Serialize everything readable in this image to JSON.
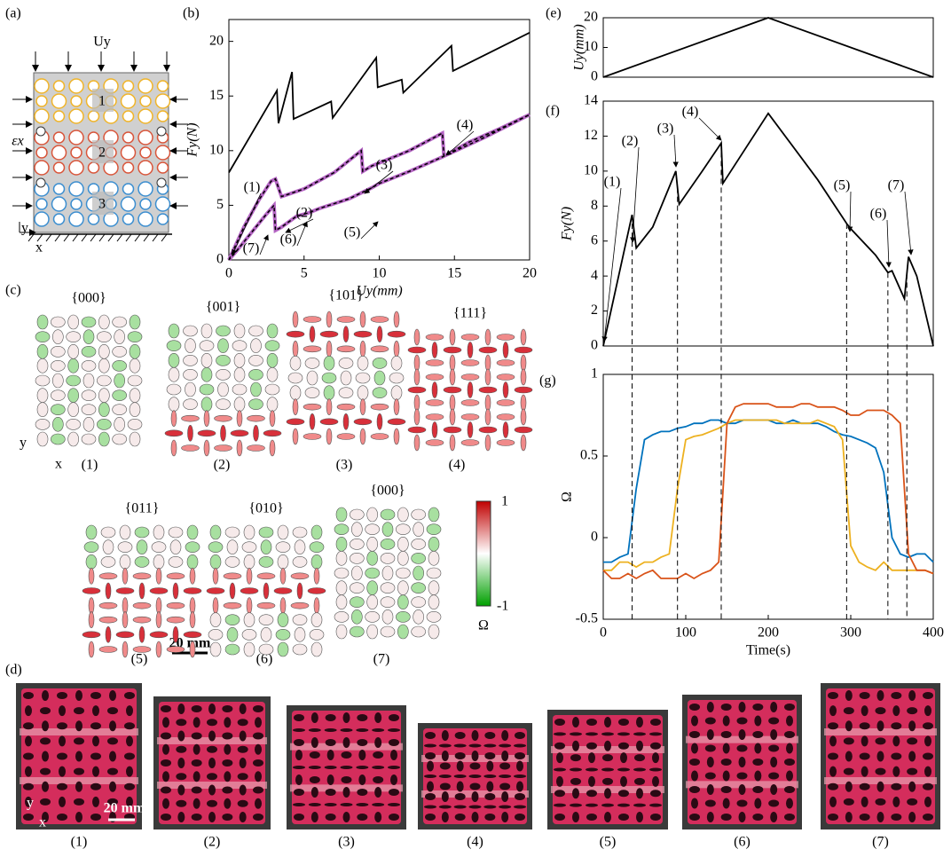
{
  "panel_labels": {
    "a": "(a)",
    "b": "(b)",
    "c": "(c)",
    "d": "(d)",
    "e": "(e)",
    "f": "(f)",
    "g": "(g)"
  },
  "schematic": {
    "load": "Uy",
    "strain": "εx",
    "cells": [
      "1",
      "2",
      "3"
    ],
    "axis_y": "y",
    "axis_x": "x"
  },
  "states": [
    {
      "code": "{000}",
      "label": "(1)"
    },
    {
      "code": "{001}",
      "label": "(2)"
    },
    {
      "code": "{101}",
      "label": "(3)"
    },
    {
      "code": "{111}",
      "label": "(4)"
    },
    {
      "code": "{011}",
      "label": "(5)"
    },
    {
      "code": "{010}",
      "label": "(6)"
    },
    {
      "code": "{000}",
      "label": "(7)"
    }
  ],
  "state_axes": {
    "y": "y",
    "x": "x"
  },
  "colorbar": {
    "max": "1",
    "min": "-1",
    "symbol": "Ω"
  },
  "scale_bar": "20 mm",
  "photos": {
    "labels": [
      "(1)",
      "(2)",
      "(3)",
      "(4)",
      "(5)",
      "(6)",
      "(7)"
    ],
    "scale_bar": "20 mm",
    "axis_y": "y",
    "axis_x": "x"
  },
  "chart_data": [
    {
      "type": "line",
      "xlabel": "Uy(mm)",
      "ylabel": "Fy(N)",
      "xlim": [
        0,
        20
      ],
      "ylim": [
        0,
        22
      ],
      "xticks": [
        0,
        5,
        10,
        15,
        20
      ],
      "yticks": [
        0,
        5,
        10,
        15,
        20
      ],
      "series": [
        {
          "color": "#000000",
          "x": [
            0,
            3.2,
            3.3,
            4.2,
            4.3,
            6.8,
            6.9,
            9.8,
            9.9,
            11.5,
            11.6,
            14.8,
            14.9,
            20
          ],
          "values": [
            8,
            15.5,
            12.5,
            17.2,
            12.9,
            14.5,
            13,
            18.5,
            15.8,
            16.5,
            15.3,
            19.6,
            17.3,
            20.8
          ]
        },
        {
          "color": "#b565c4",
          "x": [
            0,
            1,
            2,
            2.8,
            3.1,
            3.5,
            5,
            7,
            8.8,
            8.9,
            9.5,
            12,
            14.2,
            14.3,
            16,
            18,
            20,
            17,
            14,
            12,
            10,
            9.5,
            8,
            6,
            5.3,
            4.5,
            3.5,
            3.1,
            3,
            2.5,
            1.5,
            0.5,
            0
          ],
          "values": [
            0,
            3,
            5.5,
            7.2,
            7.4,
            5.8,
            6.5,
            8,
            10,
            8.1,
            8.6,
            10,
            11.6,
            9.5,
            10.8,
            12,
            13.3,
            11.2,
            9.3,
            8.1,
            7,
            6.6,
            5.6,
            4.7,
            4.3,
            4,
            3,
            2.7,
            5,
            4.2,
            2.5,
            0.8,
            0
          ]
        },
        {
          "color": "#000000",
          "dashed": true,
          "x": [
            0,
            1,
            2,
            2.8,
            3.1,
            3.5,
            5,
            7,
            8.8,
            8.9,
            9.5,
            12,
            14.2,
            14.3,
            16,
            18,
            20,
            17,
            14,
            12,
            10,
            9.5,
            8,
            6,
            5.3,
            4.5,
            3.5,
            3.1,
            3,
            2.5,
            1.5,
            0.5,
            0
          ],
          "values": [
            0,
            3,
            5.5,
            7.2,
            7.4,
            5.8,
            6.5,
            8,
            10,
            8.1,
            8.6,
            10,
            11.6,
            9.5,
            10.8,
            12,
            13.3,
            11.2,
            9.3,
            8.1,
            7,
            6.6,
            5.6,
            4.7,
            4.3,
            4,
            3,
            2.7,
            5,
            4.2,
            2.5,
            0.8,
            0
          ]
        }
      ],
      "annotations": [
        "(1)",
        "(2)",
        "(3)",
        "(4)",
        "(5)",
        "(6)",
        "(7)"
      ]
    },
    {
      "type": "line",
      "ylabel": "Uy(mm)",
      "xlim": [
        0,
        400
      ],
      "ylim": [
        0,
        20
      ],
      "yticks": [
        0,
        10,
        20
      ],
      "x": [
        0,
        200,
        400
      ],
      "series": [
        {
          "color": "#000000",
          "values": [
            0,
            20,
            0
          ]
        }
      ]
    },
    {
      "type": "line",
      "ylabel": "Fy(N)",
      "xlim": [
        0,
        400
      ],
      "ylim": [
        0,
        14
      ],
      "yticks": [
        0,
        2,
        4,
        6,
        8,
        10,
        12,
        14
      ],
      "x": [
        0,
        35,
        40,
        60,
        88,
        92,
        120,
        143,
        145,
        200,
        260,
        295,
        300,
        330,
        345,
        350,
        365,
        370,
        380,
        400
      ],
      "series": [
        {
          "color": "#000000",
          "values": [
            0,
            7.5,
            5.6,
            6.8,
            10,
            8.1,
            10,
            11.6,
            9.3,
            13.3,
            9.5,
            7,
            6.7,
            5.2,
            4.2,
            4.3,
            2.7,
            5.1,
            4,
            0
          ]
        }
      ],
      "annotations": [
        "(1)",
        "(2)",
        "(3)",
        "(4)",
        "(5)",
        "(6)",
        "(7)"
      ]
    },
    {
      "type": "line",
      "xlabel": "Time(s)",
      "ylabel": "Ω",
      "xlim": [
        0,
        400
      ],
      "ylim": [
        -0.5,
        1
      ],
      "xticks": [
        0,
        100,
        200,
        300,
        400
      ],
      "yticks": [
        -0.5,
        0,
        0.5,
        1
      ],
      "x": [
        0,
        10,
        20,
        30,
        40,
        50,
        60,
        70,
        80,
        90,
        100,
        110,
        120,
        130,
        140,
        150,
        160,
        170,
        180,
        190,
        200,
        210,
        220,
        230,
        240,
        250,
        260,
        270,
        280,
        290,
        300,
        310,
        320,
        330,
        340,
        350,
        360,
        370,
        380,
        390,
        400
      ],
      "series": [
        {
          "color": "#0072bd",
          "values": [
            -0.15,
            -0.15,
            -0.12,
            -0.1,
            0.3,
            0.6,
            0.63,
            0.65,
            0.65,
            0.67,
            0.68,
            0.7,
            0.7,
            0.72,
            0.72,
            0.7,
            0.7,
            0.72,
            0.72,
            0.72,
            0.72,
            0.7,
            0.7,
            0.72,
            0.7,
            0.7,
            0.7,
            0.68,
            0.65,
            0.63,
            0.62,
            0.6,
            0.58,
            0.55,
            0.4,
            0,
            -0.1,
            -0.12,
            -0.1,
            -0.1,
            -0.15
          ]
        },
        {
          "color": "#edb120",
          "values": [
            -0.2,
            -0.2,
            -0.15,
            -0.15,
            -0.18,
            -0.15,
            -0.15,
            -0.12,
            -0.1,
            0.3,
            0.6,
            0.62,
            0.63,
            0.65,
            0.67,
            0.7,
            0.72,
            0.72,
            0.72,
            0.72,
            0.72,
            0.72,
            0.7,
            0.7,
            0.7,
            0.7,
            0.72,
            0.7,
            0.68,
            0.6,
            -0.05,
            -0.15,
            -0.18,
            -0.2,
            -0.15,
            -0.2,
            -0.2,
            -0.2,
            -0.2,
            -0.2,
            -0.22
          ]
        },
        {
          "color": "#d95319",
          "values": [
            -0.2,
            -0.25,
            -0.25,
            -0.22,
            -0.25,
            -0.22,
            -0.2,
            -0.25,
            -0.25,
            -0.25,
            -0.22,
            -0.25,
            -0.22,
            -0.2,
            -0.15,
            0.7,
            0.8,
            0.82,
            0.82,
            0.82,
            0.82,
            0.8,
            0.8,
            0.8,
            0.82,
            0.82,
            0.8,
            0.8,
            0.8,
            0.78,
            0.75,
            0.75,
            0.78,
            0.78,
            0.78,
            0.75,
            0.7,
            -0.1,
            -0.2,
            -0.2,
            -0.22
          ]
        }
      ],
      "vlines": [
        35,
        90,
        143,
        295,
        345,
        368
      ]
    }
  ]
}
